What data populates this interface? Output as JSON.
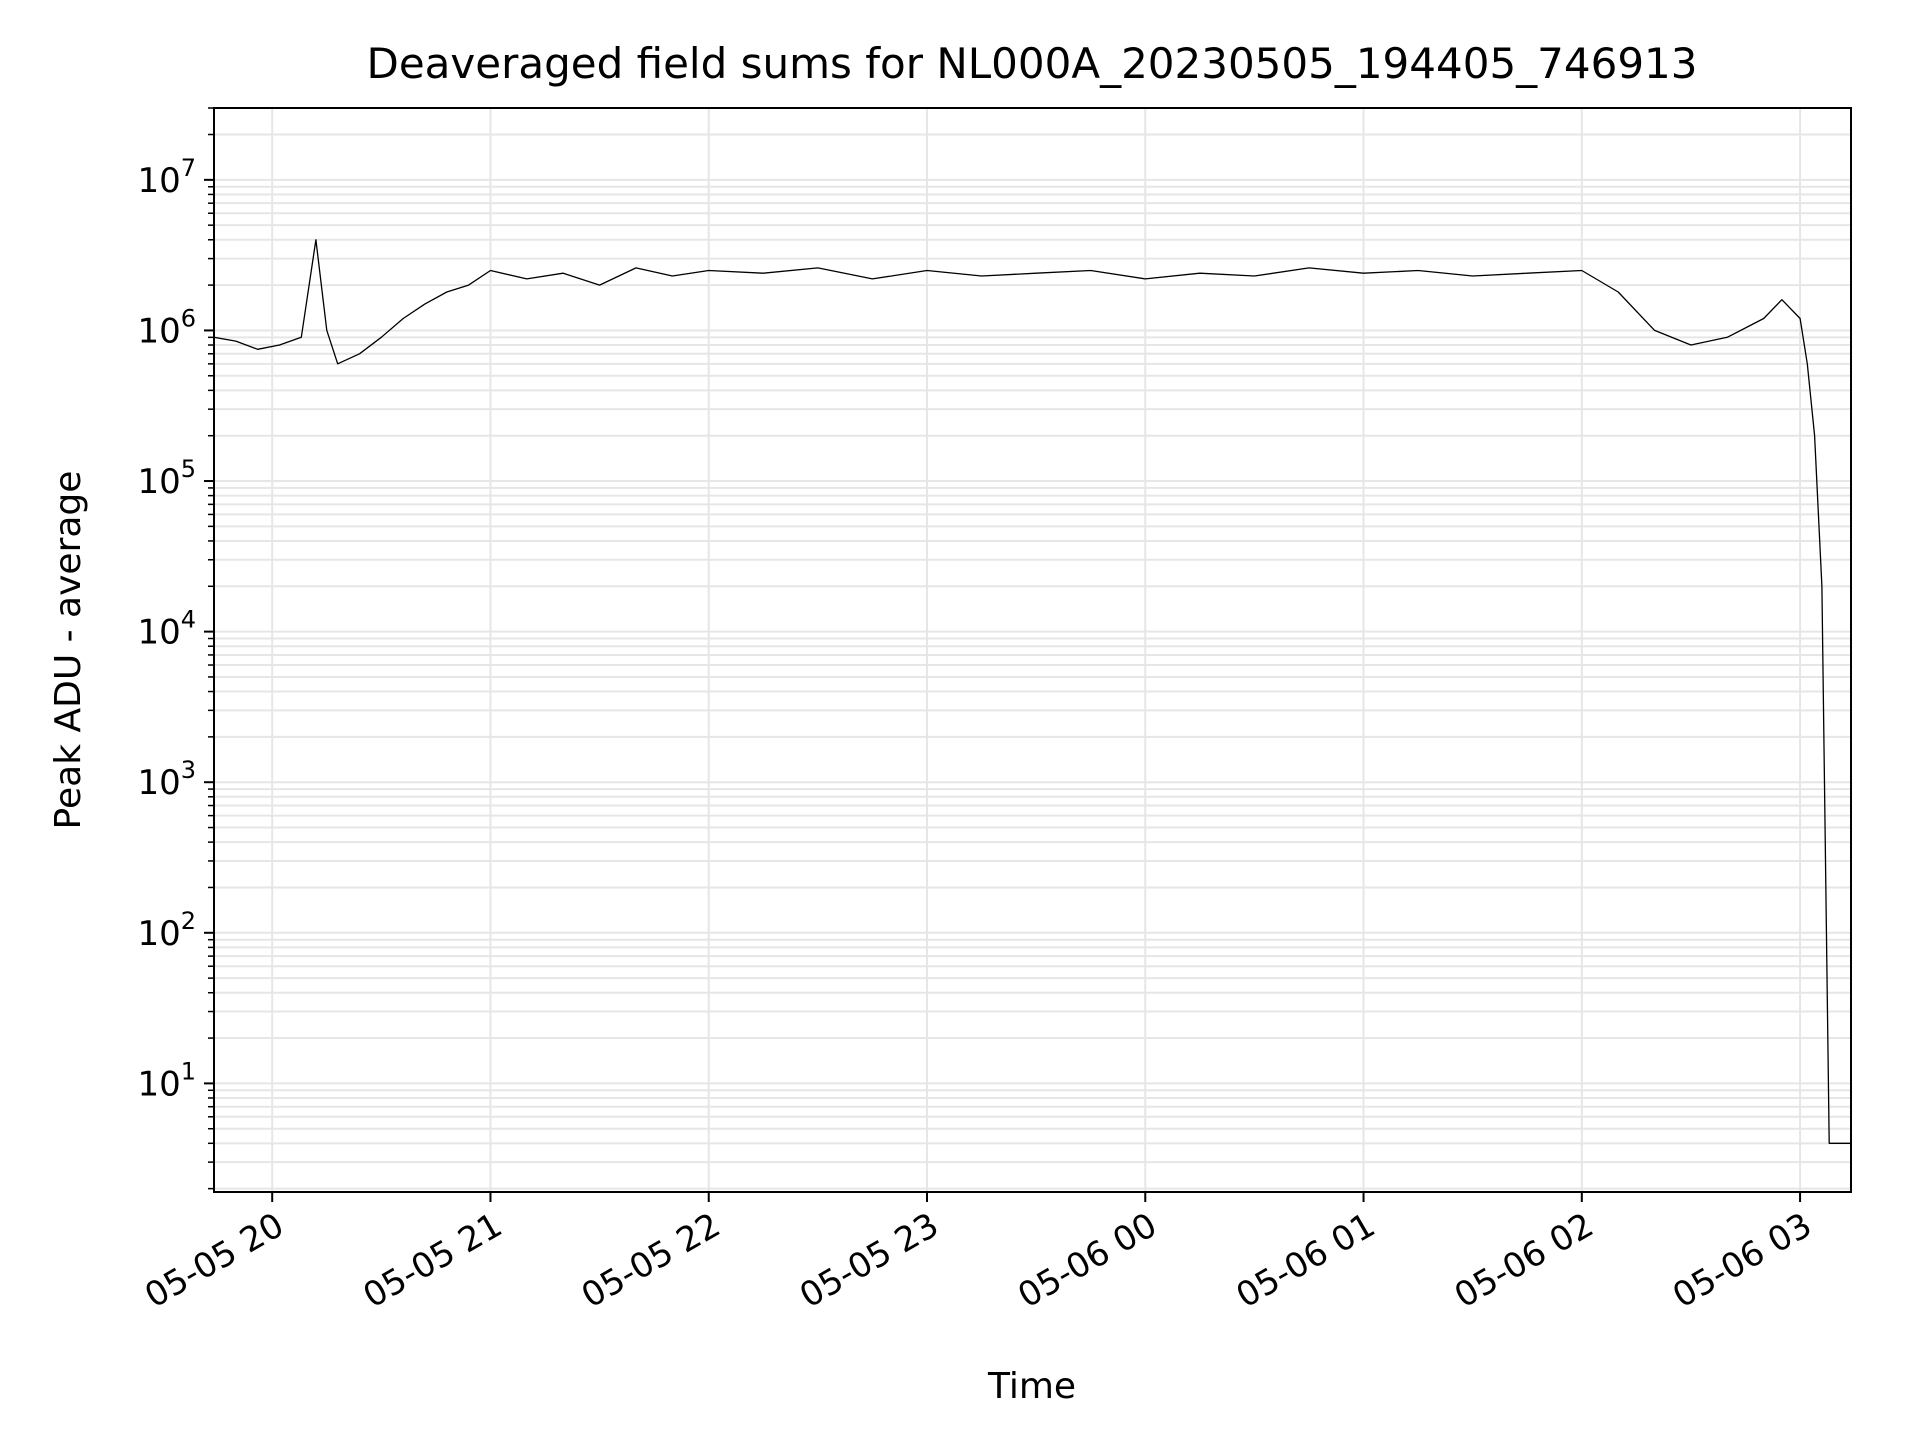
{
  "chart_data": {
    "type": "line",
    "title": "Deaveraged field sums for NL000A_20230505_194405_746913",
    "xlabel": "Time",
    "ylabel": "Peak ADU - average",
    "yscale": "log",
    "ylim": [
      1.9,
      30000000
    ],
    "xlim": [
      "2023-05-05 19:44",
      "2023-05-06 03:14"
    ],
    "grid": true,
    "line_color": "#000000",
    "x_ticks": [
      {
        "label": "05-05 20",
        "value": "2023-05-05 20:00"
      },
      {
        "label": "05-05 21",
        "value": "2023-05-05 21:00"
      },
      {
        "label": "05-05 22",
        "value": "2023-05-05 22:00"
      },
      {
        "label": "05-05 23",
        "value": "2023-05-05 23:00"
      },
      {
        "label": "05-06 00",
        "value": "2023-05-06 00:00"
      },
      {
        "label": "05-06 01",
        "value": "2023-05-06 01:00"
      },
      {
        "label": "05-06 02",
        "value": "2023-05-06 02:00"
      },
      {
        "label": "05-06 03",
        "value": "2023-05-06 03:00"
      }
    ],
    "y_ticks": [
      {
        "base": "10",
        "exp": "1",
        "value": 10
      },
      {
        "base": "10",
        "exp": "2",
        "value": 100
      },
      {
        "base": "10",
        "exp": "3",
        "value": 1000
      },
      {
        "base": "10",
        "exp": "4",
        "value": 10000
      },
      {
        "base": "10",
        "exp": "5",
        "value": 100000
      },
      {
        "base": "10",
        "exp": "6",
        "value": 1000000
      },
      {
        "base": "10",
        "exp": "7",
        "value": 10000000
      }
    ],
    "series": [
      {
        "x": [
          "2023-05-05 19:44",
          "2023-05-05 19:50",
          "2023-05-05 19:56",
          "2023-05-05 20:02",
          "2023-05-05 20:08",
          "2023-05-05 20:12",
          "2023-05-05 20:15",
          "2023-05-05 20:18",
          "2023-05-05 20:24",
          "2023-05-05 20:30",
          "2023-05-05 20:36",
          "2023-05-05 20:42",
          "2023-05-05 20:48",
          "2023-05-05 20:54",
          "2023-05-05 21:00",
          "2023-05-05 21:10",
          "2023-05-05 21:20",
          "2023-05-05 21:30",
          "2023-05-05 21:40",
          "2023-05-05 21:50",
          "2023-05-05 22:00",
          "2023-05-05 22:15",
          "2023-05-05 22:30",
          "2023-05-05 22:45",
          "2023-05-05 23:00",
          "2023-05-05 23:15",
          "2023-05-05 23:30",
          "2023-05-05 23:45",
          "2023-05-06 00:00",
          "2023-05-06 00:15",
          "2023-05-06 00:30",
          "2023-05-06 00:45",
          "2023-05-06 01:00",
          "2023-05-06 01:15",
          "2023-05-06 01:30",
          "2023-05-06 01:45",
          "2023-05-06 02:00",
          "2023-05-06 02:10",
          "2023-05-06 02:20",
          "2023-05-06 02:30",
          "2023-05-06 02:40",
          "2023-05-06 02:50",
          "2023-05-06 02:55",
          "2023-05-06 03:00",
          "2023-05-06 03:02",
          "2023-05-06 03:04",
          "2023-05-06 03:06",
          "2023-05-06 03:07",
          "2023-05-06 03:08",
          "2023-05-06 03:09",
          "2023-05-06 03:14"
        ],
        "y": [
          900000,
          850000,
          750000,
          800000,
          900000,
          4000000,
          1000000,
          600000,
          700000,
          900000,
          1200000,
          1500000,
          1800000,
          2000000,
          2500000,
          2200000,
          2400000,
          2000000,
          2600000,
          2300000,
          2500000,
          2400000,
          2600000,
          2200000,
          2500000,
          2300000,
          2400000,
          2500000,
          2200000,
          2400000,
          2300000,
          2600000,
          2400000,
          2500000,
          2300000,
          2400000,
          2500000,
          1800000,
          1000000,
          800000,
          900000,
          1200000,
          1600000,
          1200000,
          600000,
          200000,
          20000,
          300,
          4,
          4,
          4
        ]
      }
    ]
  }
}
